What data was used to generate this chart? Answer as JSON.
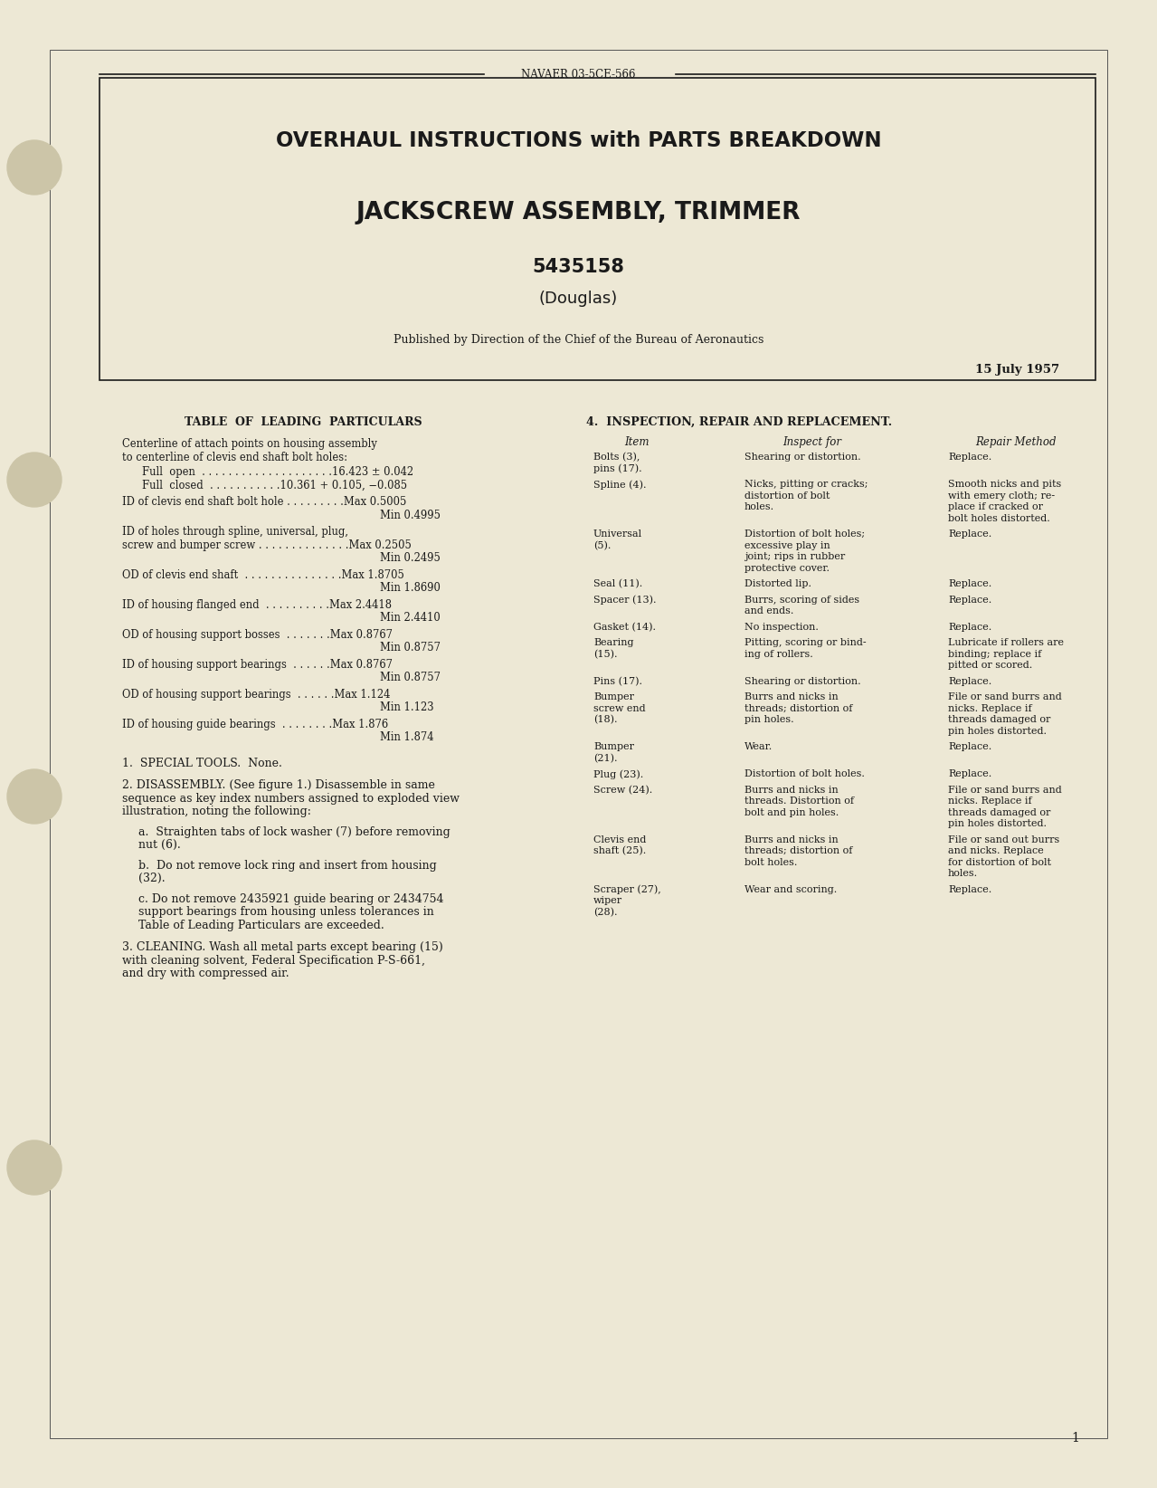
{
  "bg_color": "#ede8d5",
  "text_color": "#1a1a1a",
  "header_label": "NAVAER 03-5CE-566",
  "title_line1": "OVERHAUL INSTRUCTIONS with PARTS BREAKDOWN",
  "title_line2": "JACKSCREW ASSEMBLY, TRIMMER",
  "title_line3": "5435158",
  "title_line4": "(Douglas)",
  "published_by": "Published by Direction of the Chief of the Bureau of Aeronautics",
  "date": "15 July 1957",
  "page_number": "1"
}
